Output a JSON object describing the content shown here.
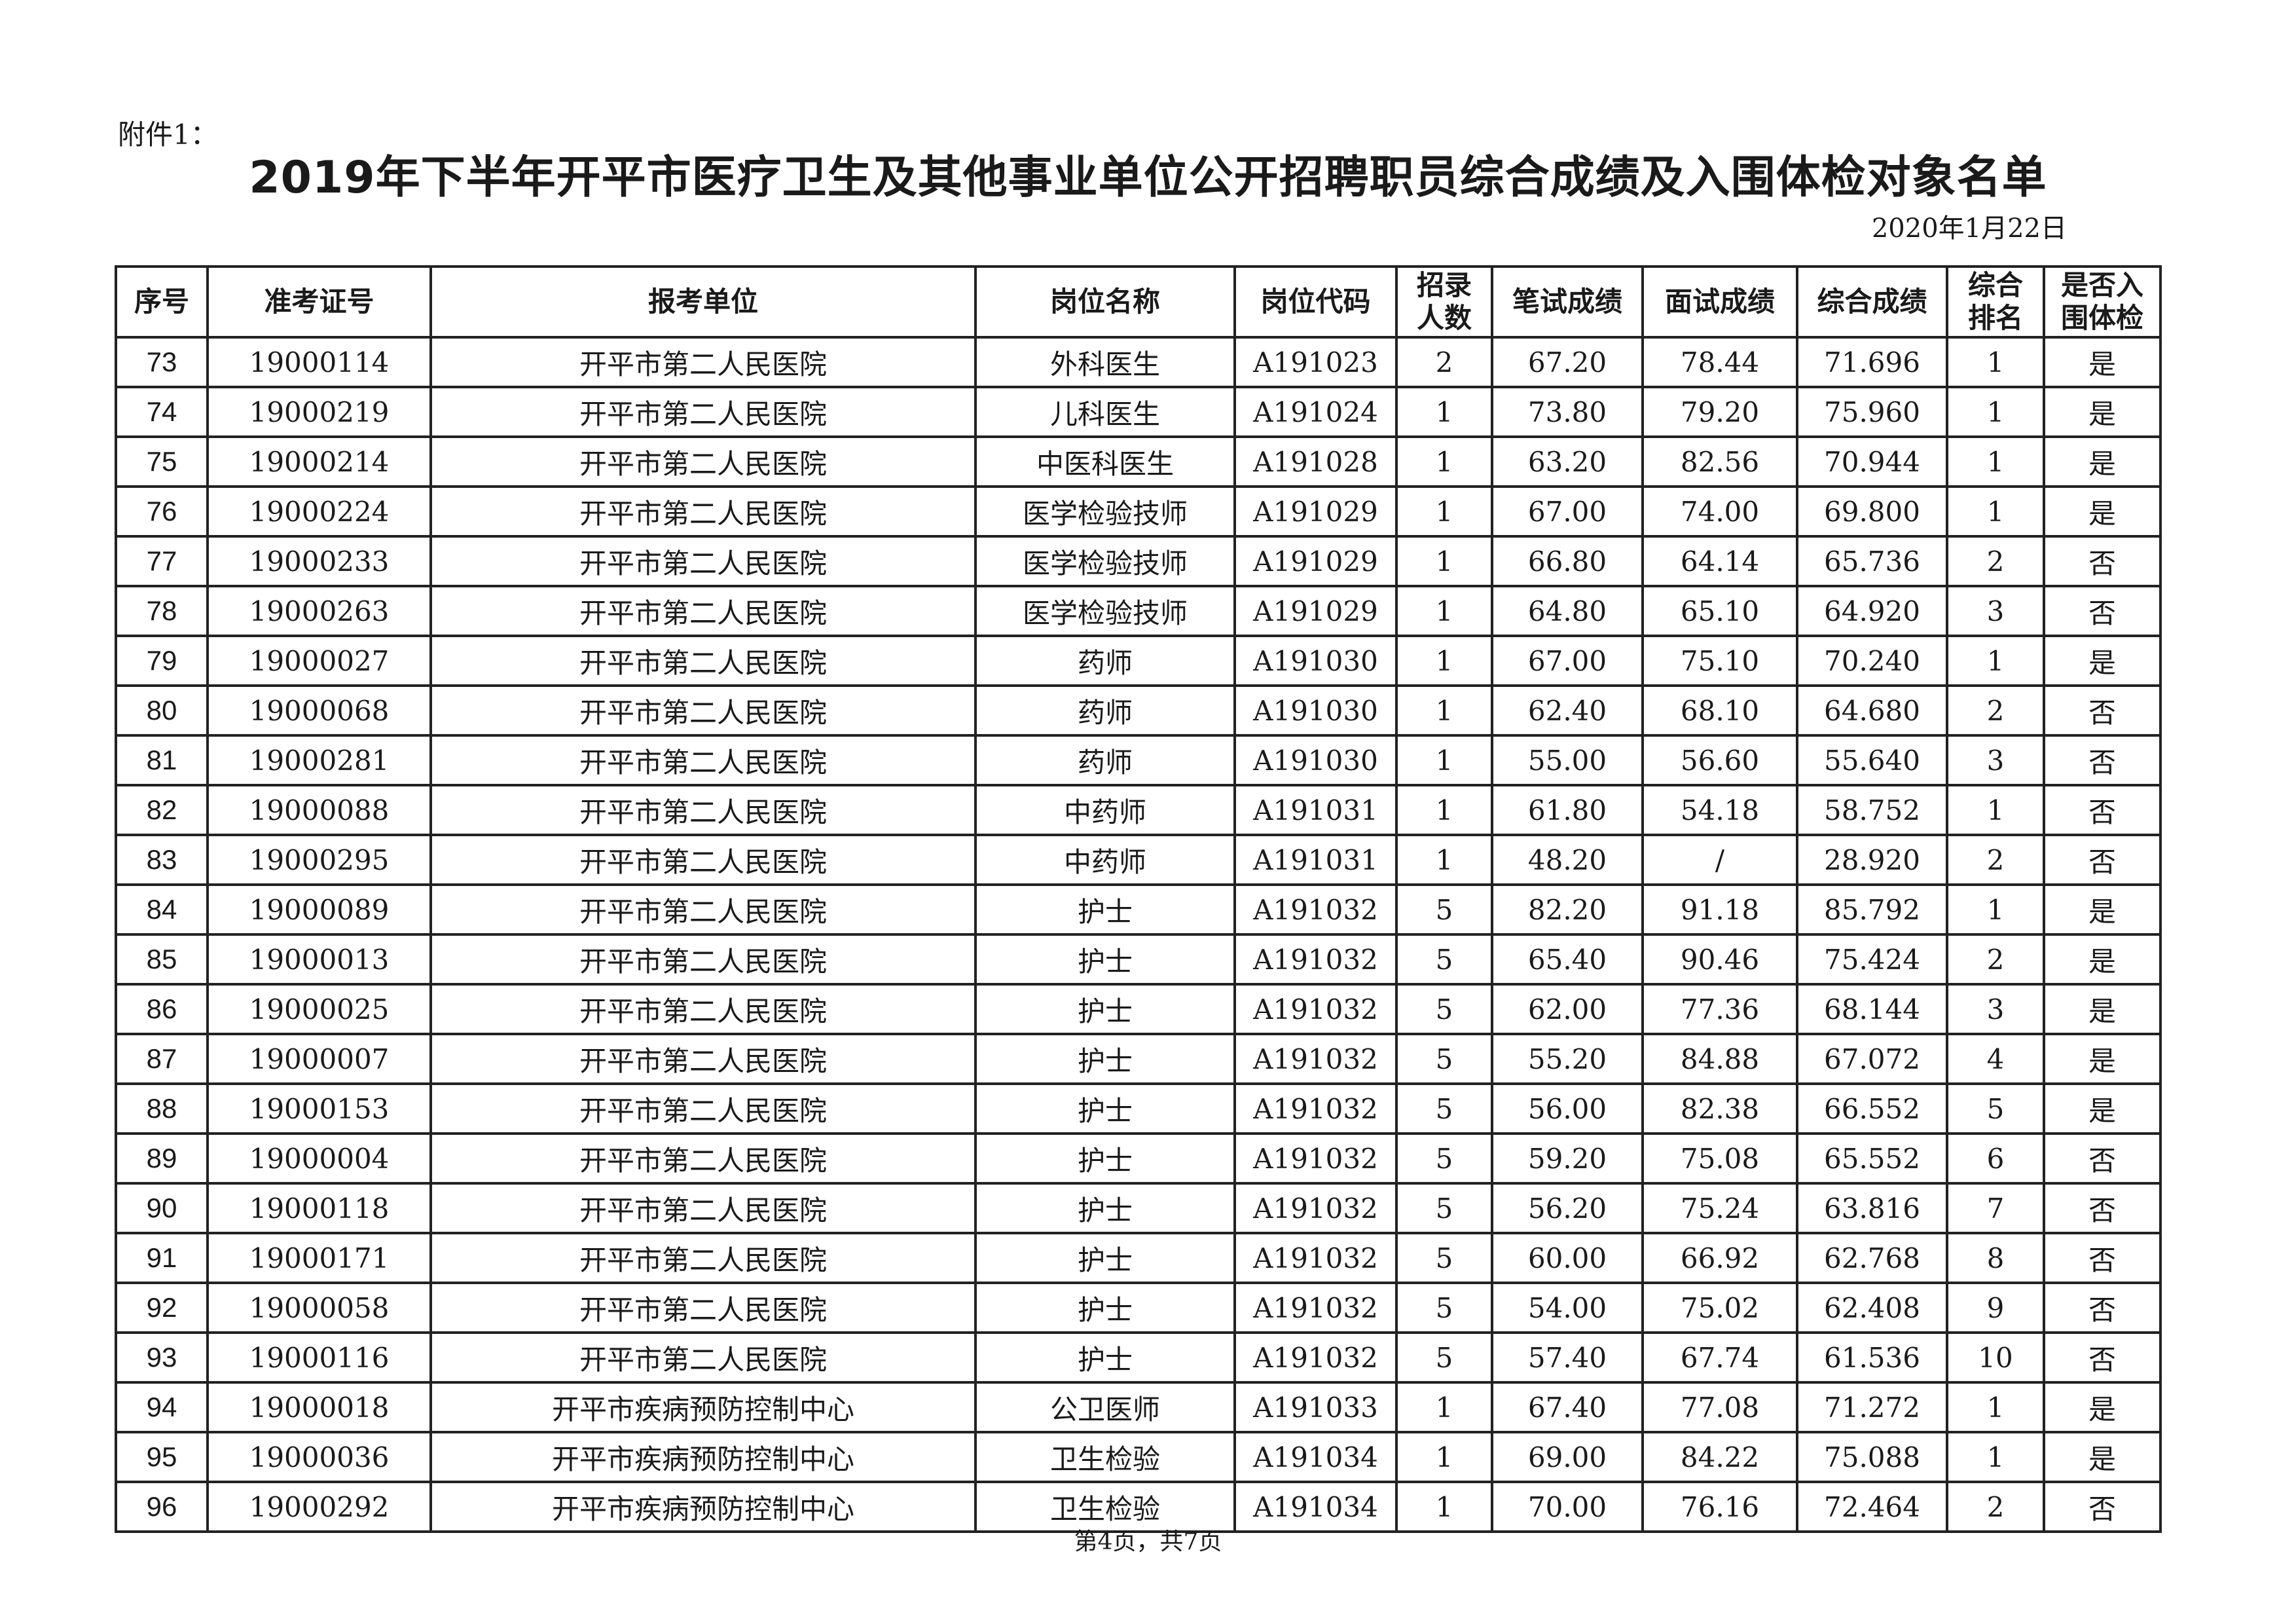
{
  "attachment_label": "附件1：",
  "title": "2019年下半年开平市医疗卫生及其他事业单位公开招聘职员综合成绩及入围体检对象名单",
  "date": "2020年1月22日",
  "table": {
    "headers": [
      "序号",
      "准考证号",
      "报考单位",
      "岗位名称",
      "岗位代码",
      "招录\n人数",
      "笔试成绩",
      "面试成绩",
      "综合成绩",
      "综合\n排名",
      "是否入\n围体检"
    ],
    "rows": [
      [
        "73",
        "19000114",
        "开平市第二人民医院",
        "外科医生",
        "A191023",
        "2",
        "67.20",
        "78.44",
        "71.696",
        "1",
        "是"
      ],
      [
        "74",
        "19000219",
        "开平市第二人民医院",
        "儿科医生",
        "A191024",
        "1",
        "73.80",
        "79.20",
        "75.960",
        "1",
        "是"
      ],
      [
        "75",
        "19000214",
        "开平市第二人民医院",
        "中医科医生",
        "A191028",
        "1",
        "63.20",
        "82.56",
        "70.944",
        "1",
        "是"
      ],
      [
        "76",
        "19000224",
        "开平市第二人民医院",
        "医学检验技师",
        "A191029",
        "1",
        "67.00",
        "74.00",
        "69.800",
        "1",
        "是"
      ],
      [
        "77",
        "19000233",
        "开平市第二人民医院",
        "医学检验技师",
        "A191029",
        "1",
        "66.80",
        "64.14",
        "65.736",
        "2",
        "否"
      ],
      [
        "78",
        "19000263",
        "开平市第二人民医院",
        "医学检验技师",
        "A191029",
        "1",
        "64.80",
        "65.10",
        "64.920",
        "3",
        "否"
      ],
      [
        "79",
        "19000027",
        "开平市第二人民医院",
        "药师",
        "A191030",
        "1",
        "67.00",
        "75.10",
        "70.240",
        "1",
        "是"
      ],
      [
        "80",
        "19000068",
        "开平市第二人民医院",
        "药师",
        "A191030",
        "1",
        "62.40",
        "68.10",
        "64.680",
        "2",
        "否"
      ],
      [
        "81",
        "19000281",
        "开平市第二人民医院",
        "药师",
        "A191030",
        "1",
        "55.00",
        "56.60",
        "55.640",
        "3",
        "否"
      ],
      [
        "82",
        "19000088",
        "开平市第二人民医院",
        "中药师",
        "A191031",
        "1",
        "61.80",
        "54.18",
        "58.752",
        "1",
        "否"
      ],
      [
        "83",
        "19000295",
        "开平市第二人民医院",
        "中药师",
        "A191031",
        "1",
        "48.20",
        "/",
        "28.920",
        "2",
        "否"
      ],
      [
        "84",
        "19000089",
        "开平市第二人民医院",
        "护士",
        "A191032",
        "5",
        "82.20",
        "91.18",
        "85.792",
        "1",
        "是"
      ],
      [
        "85",
        "19000013",
        "开平市第二人民医院",
        "护士",
        "A191032",
        "5",
        "65.40",
        "90.46",
        "75.424",
        "2",
        "是"
      ],
      [
        "86",
        "19000025",
        "开平市第二人民医院",
        "护士",
        "A191032",
        "5",
        "62.00",
        "77.36",
        "68.144",
        "3",
        "是"
      ],
      [
        "87",
        "19000007",
        "开平市第二人民医院",
        "护士",
        "A191032",
        "5",
        "55.20",
        "84.88",
        "67.072",
        "4",
        "是"
      ],
      [
        "88",
        "19000153",
        "开平市第二人民医院",
        "护士",
        "A191032",
        "5",
        "56.00",
        "82.38",
        "66.552",
        "5",
        "是"
      ],
      [
        "89",
        "19000004",
        "开平市第二人民医院",
        "护士",
        "A191032",
        "5",
        "59.20",
        "75.08",
        "65.552",
        "6",
        "否"
      ],
      [
        "90",
        "19000118",
        "开平市第二人民医院",
        "护士",
        "A191032",
        "5",
        "56.20",
        "75.24",
        "63.816",
        "7",
        "否"
      ],
      [
        "91",
        "19000171",
        "开平市第二人民医院",
        "护士",
        "A191032",
        "5",
        "60.00",
        "66.92",
        "62.768",
        "8",
        "否"
      ],
      [
        "92",
        "19000058",
        "开平市第二人民医院",
        "护士",
        "A191032",
        "5",
        "54.00",
        "75.02",
        "62.408",
        "9",
        "否"
      ],
      [
        "93",
        "19000116",
        "开平市第二人民医院",
        "护士",
        "A191032",
        "5",
        "57.40",
        "67.74",
        "61.536",
        "10",
        "否"
      ],
      [
        "94",
        "19000018",
        "开平市疾病预防控制中心",
        "公卫医师",
        "A191033",
        "1",
        "67.40",
        "77.08",
        "71.272",
        "1",
        "是"
      ],
      [
        "95",
        "19000036",
        "开平市疾病预防控制中心",
        "卫生检验",
        "A191034",
        "1",
        "69.00",
        "84.22",
        "75.088",
        "1",
        "是"
      ],
      [
        "96",
        "19000292",
        "开平市疾病预防控制中心",
        "卫生检验",
        "A191034",
        "1",
        "70.00",
        "76.16",
        "72.464",
        "2",
        "否"
      ]
    ]
  },
  "footer": "第4页，共7页"
}
